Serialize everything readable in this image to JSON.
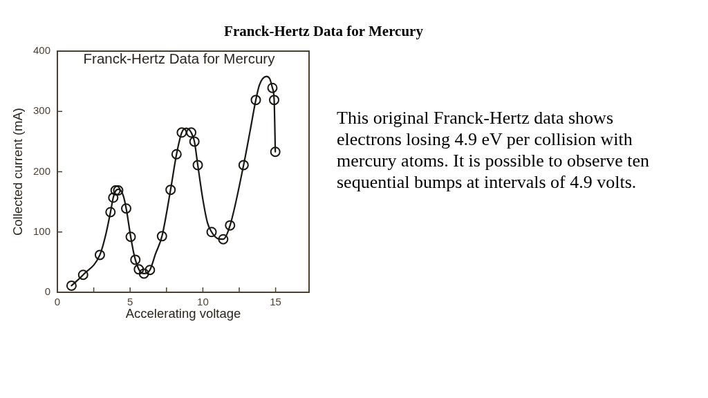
{
  "chart_data": {
    "type": "scatter",
    "title": "Franck-Hertz Data for Mercury",
    "xlabel": "Accelerating voltage",
    "ylabel": "Collected current (mA)",
    "xlim": [
      0,
      17.3
    ],
    "xticks": [
      0,
      {
        "value": 2.5,
        "label": null
      },
      5,
      {
        "value": 7.5,
        "label": null
      },
      10,
      {
        "value": 12.5,
        "label": null
      },
      15
    ],
    "ylim": [
      0,
      400
    ],
    "yticks": [
      0,
      100,
      200,
      300,
      400
    ],
    "grid": false,
    "series": [
      {
        "color": "#1a1612",
        "marker": "circle",
        "x": [
          0.97,
          1.77,
          2.92,
          3.65,
          3.84,
          4.0,
          4.18,
          4.73,
          5.04,
          5.36,
          5.6,
          5.95,
          6.36,
          7.19,
          7.78,
          8.19,
          8.55,
          9.2,
          9.42,
          9.65,
          10.6,
          11.4,
          11.87,
          12.8,
          13.64,
          14.78,
          14.9,
          14.98
        ],
        "values": [
          11,
          29,
          62,
          133,
          157,
          169,
          169,
          139,
          92,
          54,
          38,
          31,
          37,
          93,
          170,
          229,
          265,
          265,
          250,
          211,
          100,
          88,
          111,
          211,
          319,
          339,
          319,
          233
        ]
      },
      {
        "type": "line",
        "color": "#1a1612",
        "marker": "none",
        "x": [
          0.97,
          1.77,
          2.92,
          3.33,
          3.65,
          3.84,
          4.0,
          4.2,
          4.52,
          4.73,
          5.04,
          5.24,
          5.36,
          5.6,
          5.95,
          6.36,
          6.75,
          7.19,
          7.78,
          8.19,
          8.55,
          8.86,
          9.2,
          9.42,
          9.65,
          10.0,
          10.32,
          10.6,
          11.03,
          11.4,
          11.87,
          12.8,
          13.25,
          13.64,
          13.89,
          14.37,
          14.6,
          14.78,
          14.9,
          14.98
        ],
        "values": [
          11,
          29,
          62,
          96,
          133,
          157,
          168,
          171,
          161,
          139,
          92,
          66,
          54,
          38,
          31,
          37,
          64,
          93,
          170,
          229,
          265,
          272,
          265,
          250,
          211,
          154,
          115,
          100,
          89,
          88,
          111,
          211,
          268,
          319,
          344,
          358,
          354,
          339,
          319,
          233
        ]
      }
    ],
    "annotations": [
      "Franck-Hertz Data for Mercury",
      "This original Franck-Hertz data shows electrons losing 4.9 eV per collision with mercury atoms. It is possible to observe ten sequential bumps at intervals of 4.9 volts."
    ]
  }
}
